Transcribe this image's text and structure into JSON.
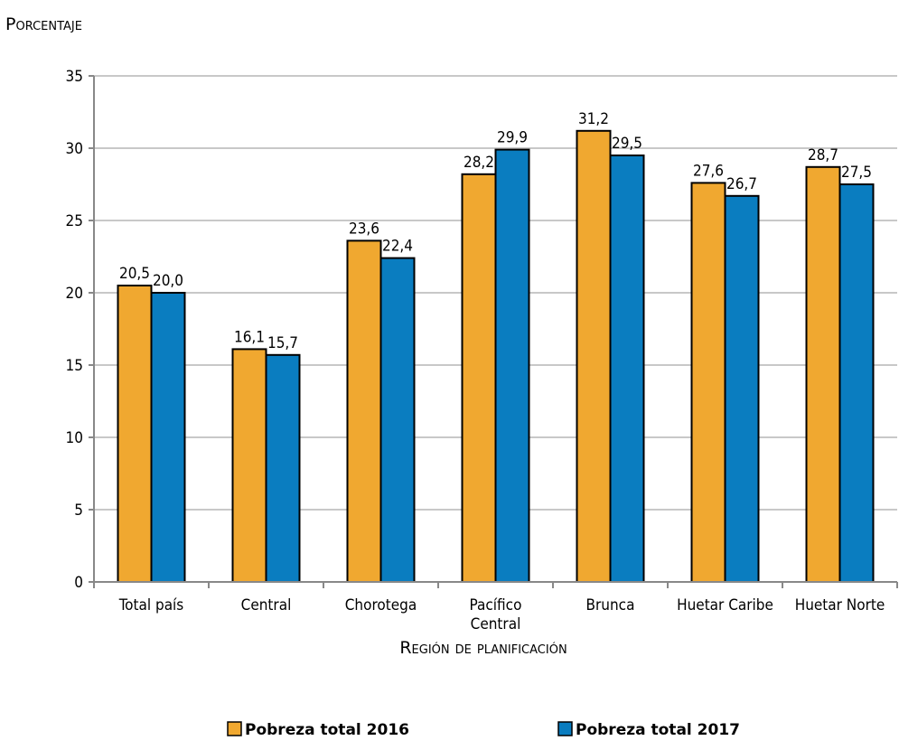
{
  "chart_data": {
    "type": "bar",
    "title": "",
    "ylabel": "Porcentaje",
    "xlabel": "Región de planificación",
    "ylim": [
      0,
      35
    ],
    "yticks": [
      "0",
      "5",
      "10",
      "15",
      "20",
      "25",
      "30",
      "35"
    ],
    "yticks_values": [
      0,
      5,
      10,
      15,
      20,
      25,
      30,
      35
    ],
    "grid": true,
    "legend_position": "bottom",
    "categories": [
      [
        "Total país"
      ],
      [
        "Central"
      ],
      [
        "Chorotega"
      ],
      [
        "Pacífico",
        "Central"
      ],
      [
        "Brunca"
      ],
      [
        "Huetar Caribe"
      ],
      [
        "Huetar Norte"
      ]
    ],
    "series": [
      {
        "name": "Pobreza total 2016",
        "color": "#F0A830",
        "values": [
          20.5,
          16.1,
          23.6,
          28.2,
          31.2,
          27.6,
          28.7
        ],
        "labels": [
          "20,5",
          "16,1",
          "23,6",
          "28,2",
          "31,2",
          "27,6",
          "28,7"
        ]
      },
      {
        "name": "Pobreza total 2017",
        "color": "#0A7DC0",
        "values": [
          20.0,
          15.7,
          22.4,
          29.9,
          29.5,
          26.7,
          27.5
        ],
        "labels": [
          "20,0",
          "15,7",
          "22,4",
          "29,9",
          "29,5",
          "26,7",
          "27,5"
        ]
      }
    ]
  }
}
